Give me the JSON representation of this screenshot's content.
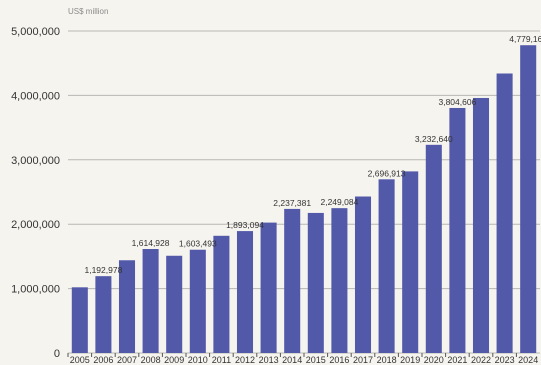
{
  "chart_data": {
    "type": "bar",
    "title": "",
    "xlabel": "",
    "ylabel": "",
    "unit_label": "US$ million",
    "categories": [
      "2005",
      "2006",
      "2007",
      "2008",
      "2009",
      "2010",
      "2011",
      "2012",
      "2013",
      "2014",
      "2015",
      "2016",
      "2017",
      "2018",
      "2019",
      "2020",
      "2021",
      "2022",
      "2023",
      "2024"
    ],
    "values": [
      1020000,
      1192978,
      1440000,
      1614928,
      1510000,
      1603493,
      1820000,
      1893094,
      2025000,
      2237381,
      2175000,
      2249084,
      2430000,
      2696913,
      2820000,
      3232640,
      3804606,
      3960000,
      4340000,
      4779165
    ],
    "data_labels": [
      "",
      "1,192,978",
      "",
      "1,614,928",
      "",
      "1,603,493",
      "",
      "1,893,094",
      "",
      "2,237,381",
      "",
      "2,249,084",
      "",
      "2,696,913",
      "",
      "3,232,640",
      "3,804,606",
      "",
      "",
      "4,779,165"
    ],
    "ylim": [
      0,
      5000000
    ],
    "yticks": [
      0,
      1000000,
      2000000,
      3000000,
      4000000,
      5000000
    ],
    "ytick_labels": [
      "0",
      "1,000,000",
      "2,000,000",
      "3,000,000",
      "4,000,000",
      "5,000,000"
    ],
    "grid": true,
    "legend": "none",
    "bar_color": "#5359a9"
  }
}
